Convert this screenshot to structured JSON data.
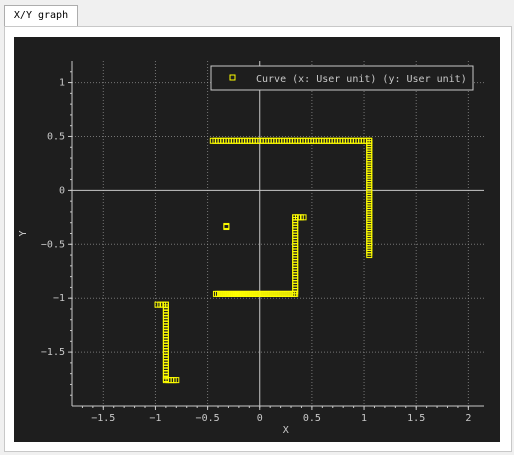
{
  "tab": {
    "label": "X/Y graph"
  },
  "colors": {
    "background": "#1e1e1e",
    "axes": "#c8c8c8",
    "grid": "#9a9a9a",
    "curve": "#ffff00"
  },
  "chart_data": {
    "type": "scatter",
    "xlabel": "X",
    "ylabel": "Y",
    "xlim": [
      -1.8,
      2.15
    ],
    "ylim": [
      -2.0,
      1.2
    ],
    "xticks": [
      -1.5,
      -1,
      -0.5,
      0,
      0.5,
      1,
      1.5,
      2
    ],
    "xtick_labels": [
      "−1.5",
      "−1",
      "−0.5",
      "0",
      "0.5",
      "1",
      "1.5",
      "2"
    ],
    "yticks": [
      1,
      0.5,
      0,
      -0.5,
      -1,
      -1.5
    ],
    "ytick_labels": [
      "1",
      "0.5",
      "0",
      "−0.5",
      "−1",
      "−1.5"
    ],
    "grid": true,
    "legend_position": "top-right",
    "series": [
      {
        "name": "Curve (x: User unit) (y: User unit)",
        "marker": "hollow-square",
        "segments": [
          {
            "from": [
              -0.45,
              0.46
            ],
            "to": [
              1.05,
              0.46
            ],
            "n": 60
          },
          {
            "from": [
              1.05,
              0.46
            ],
            "to": [
              1.05,
              -0.6
            ],
            "n": 50
          },
          {
            "from": [
              -0.42,
              -0.96
            ],
            "to": [
              0.33,
              -0.96
            ],
            "n": 40
          },
          {
            "from": [
              0.34,
              -0.96
            ],
            "to": [
              0.34,
              -0.25
            ],
            "n": 30
          },
          {
            "from": [
              0.34,
              -0.25
            ],
            "to": [
              0.42,
              -0.25
            ],
            "n": 4
          },
          {
            "from": [
              -0.98,
              -1.06
            ],
            "to": [
              -0.9,
              -1.06
            ],
            "n": 4
          },
          {
            "from": [
              -0.9,
              -1.06
            ],
            "to": [
              -0.9,
              -1.75
            ],
            "n": 28
          },
          {
            "from": [
              -0.9,
              -1.76
            ],
            "to": [
              -0.8,
              -1.76
            ],
            "n": 5
          }
        ],
        "points": [
          [
            -0.32,
            -0.33
          ],
          [
            -0.32,
            -0.34
          ]
        ]
      }
    ]
  }
}
